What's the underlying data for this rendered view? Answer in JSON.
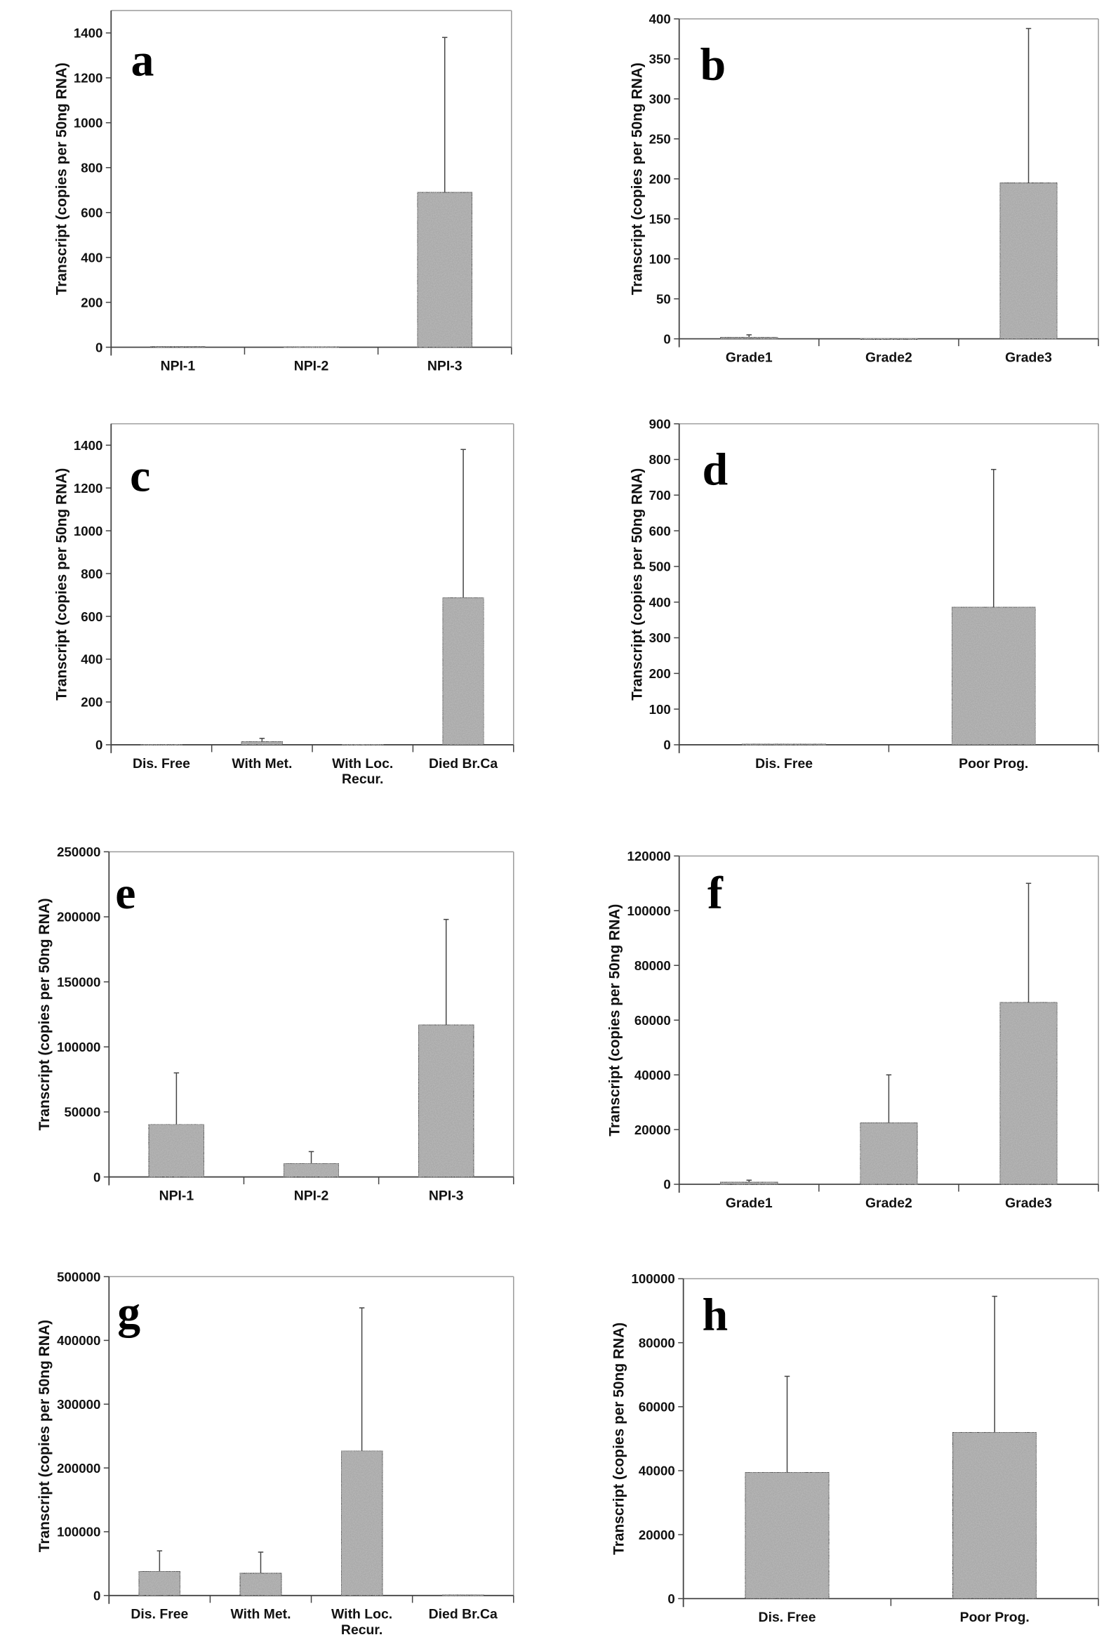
{
  "colors": {
    "bar_fill": "#a9a9a9",
    "axis": "#444444",
    "frame": "#9a9a9a"
  },
  "chart_data": [
    {
      "panel": "a",
      "type": "bar",
      "ylabel": "Transcript (copies per 50ng RNA)",
      "ylim": [
        0,
        1500
      ],
      "yticks": [
        0,
        200,
        400,
        600,
        800,
        1000,
        1200,
        1400
      ],
      "categories": [
        [
          "NPI-1"
        ],
        [
          "NPI-2"
        ],
        [
          "NPI-3"
        ]
      ],
      "values": [
        5,
        2,
        690
      ],
      "error_upper": [
        8,
        3,
        1380
      ]
    },
    {
      "panel": "b",
      "type": "bar",
      "ylabel": "Transcript (copies per 50ng RNA)",
      "ylim": [
        0,
        400
      ],
      "yticks": [
        0,
        50,
        100,
        150,
        200,
        250,
        300,
        350,
        400
      ],
      "categories": [
        [
          "Grade1"
        ],
        [
          "Grade2"
        ],
        [
          "Grade3"
        ]
      ],
      "values": [
        2,
        0.5,
        195
      ],
      "error_upper": [
        5,
        1,
        388
      ]
    },
    {
      "panel": "c",
      "type": "bar",
      "ylabel": "Transcript (copies per 50ng RNA)",
      "ylim": [
        0,
        1500
      ],
      "yticks": [
        0,
        200,
        400,
        600,
        800,
        1000,
        1200,
        1400
      ],
      "categories": [
        [
          "Dis. Free"
        ],
        [
          "With Met."
        ],
        [
          "With Loc.",
          "Recur."
        ],
        [
          "Died Br.Ca"
        ]
      ],
      "values": [
        2,
        15,
        3,
        688
      ],
      "error_upper": [
        3,
        30,
        5,
        1380
      ]
    },
    {
      "panel": "d",
      "type": "bar",
      "ylabel": "Transcript (copies per 50ng RNA)",
      "ylim": [
        0,
        900
      ],
      "yticks": [
        0,
        100,
        200,
        300,
        400,
        500,
        600,
        700,
        800,
        900
      ],
      "categories": [
        [
          "Dis. Free"
        ],
        [
          "Poor Prog."
        ]
      ],
      "values": [
        2,
        386
      ],
      "error_upper": [
        3,
        772
      ]
    },
    {
      "panel": "e",
      "type": "bar",
      "ylabel": "Transcript (copies per 50ng RNA)",
      "ylim": [
        0,
        250000
      ],
      "yticks": [
        0,
        50000,
        100000,
        150000,
        200000,
        250000
      ],
      "categories": [
        [
          "NPI-1"
        ],
        [
          "NPI-2"
        ],
        [
          "NPI-3"
        ]
      ],
      "values": [
        40500,
        10500,
        117000
      ],
      "error_upper": [
        80000,
        19500,
        198000
      ]
    },
    {
      "panel": "f",
      "type": "bar",
      "ylabel": "Transcript (copies per 50ng RNA)",
      "ylim": [
        0,
        120000
      ],
      "yticks": [
        0,
        20000,
        40000,
        60000,
        80000,
        100000,
        120000
      ],
      "categories": [
        [
          "Grade1"
        ],
        [
          "Grade2"
        ],
        [
          "Grade3"
        ]
      ],
      "values": [
        800,
        22500,
        66500
      ],
      "error_upper": [
        1500,
        40000,
        110000
      ]
    },
    {
      "panel": "g",
      "type": "bar",
      "ylabel": "Transcript (copies per 50ng RNA)",
      "ylim": [
        0,
        500000
      ],
      "yticks": [
        0,
        100000,
        200000,
        300000,
        400000,
        500000
      ],
      "categories": [
        [
          "Dis. Free"
        ],
        [
          "With Met."
        ],
        [
          "With Loc.",
          "Recur."
        ],
        [
          "Died Br.Ca"
        ]
      ],
      "values": [
        38000,
        35000,
        227000,
        1000
      ],
      "error_upper": [
        70000,
        68000,
        451000,
        1500
      ]
    },
    {
      "panel": "h",
      "type": "bar",
      "ylabel": "Transcript (copies per 50ng RNA)",
      "ylim": [
        0,
        100000
      ],
      "yticks": [
        0,
        20000,
        40000,
        60000,
        80000,
        100000
      ],
      "categories": [
        [
          "Dis. Free"
        ],
        [
          "Poor Prog."
        ]
      ],
      "values": [
        39500,
        52000
      ],
      "error_upper": [
        69500,
        94500
      ]
    }
  ]
}
